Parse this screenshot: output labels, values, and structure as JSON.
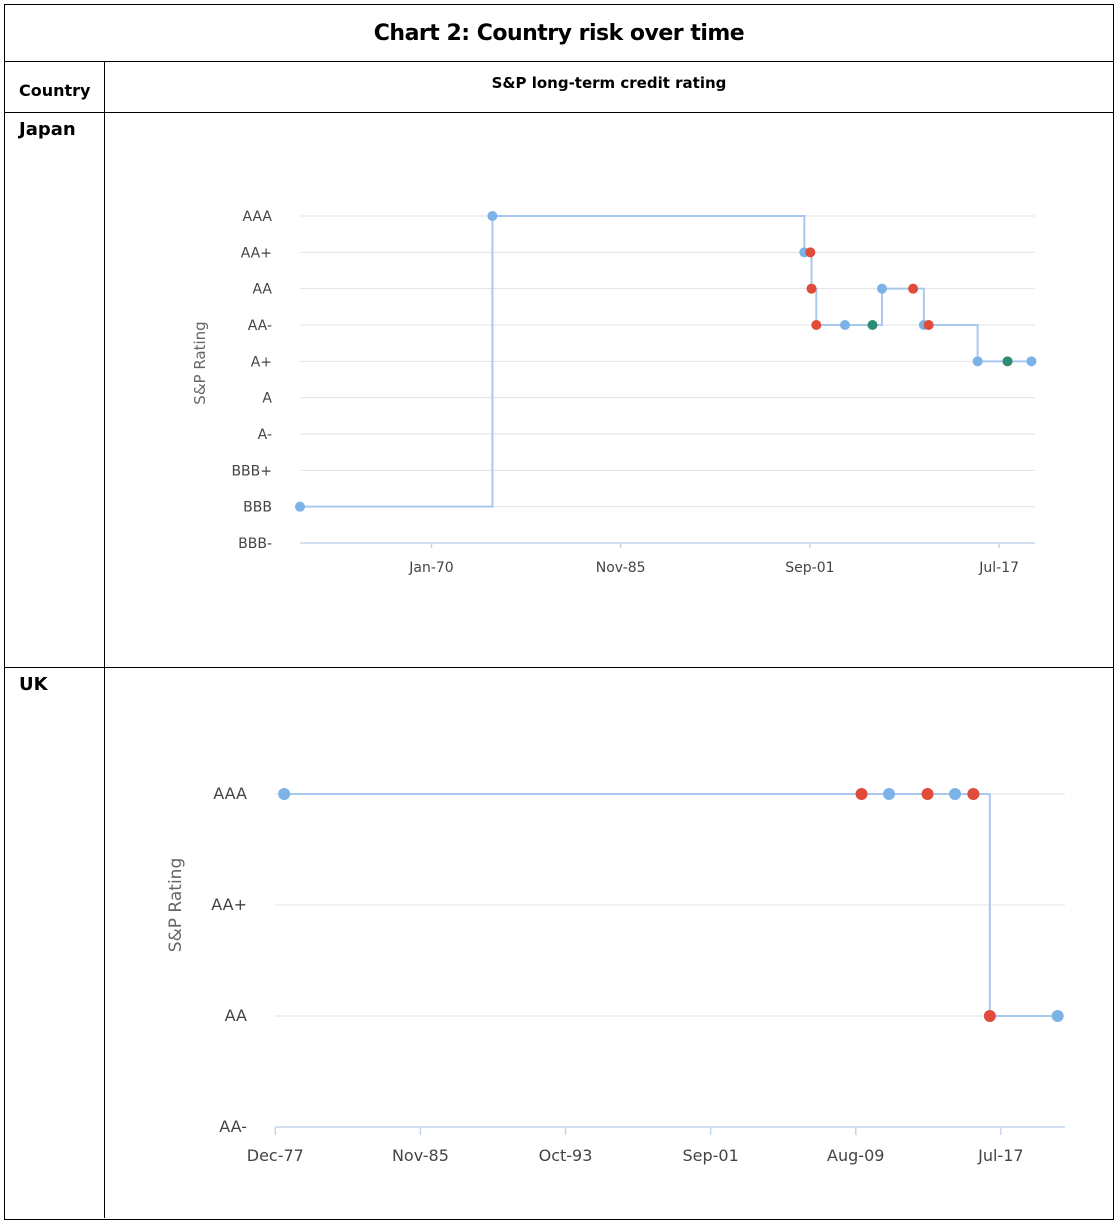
{
  "title": "Chart 2: Country risk over time",
  "header": {
    "country_col": "Country",
    "rating_col": "S&P long-term credit rating"
  },
  "colors": {
    "line": "#a8c8ee",
    "upgrade_or_affirm": "#7db2e8",
    "downgrade": "#e04b3a",
    "outlook": "#2e8b74",
    "grid": "#e3e3e3",
    "axis": "#c6d6ea",
    "label": "#444444"
  },
  "rows": [
    {
      "country": "Japan"
    },
    {
      "country": "UK"
    }
  ],
  "chart_data": [
    {
      "type": "line",
      "country": "Japan",
      "step": true,
      "ylabel": "S&P Rating",
      "y_categories": [
        "BBB-",
        "BBB",
        "BBB+",
        "A-",
        "A",
        "A+",
        "AA-",
        "AA",
        "AA+",
        "AAA"
      ],
      "x_ticks": [
        "Jan-70",
        "Nov-85",
        "Sep-01",
        "Jul-17"
      ],
      "xlim": [
        1959.0,
        2020.5
      ],
      "points": [
        {
          "year": 1959.0,
          "rating": "BBB",
          "color": "blue"
        },
        {
          "year": 1975.1,
          "rating": "AAA",
          "color": "blue"
        },
        {
          "year": 2001.2,
          "rating": "AA+",
          "color": "blue"
        },
        {
          "year": 2001.7,
          "rating": "AA+",
          "color": "red"
        },
        {
          "year": 2001.8,
          "rating": "AA",
          "color": "red"
        },
        {
          "year": 2002.2,
          "rating": "AA-",
          "color": "red"
        },
        {
          "year": 2004.6,
          "rating": "AA-",
          "color": "blue"
        },
        {
          "year": 2006.9,
          "rating": "AA-",
          "color": "green"
        },
        {
          "year": 2007.7,
          "rating": "AA",
          "color": "blue"
        },
        {
          "year": 2010.3,
          "rating": "AA",
          "color": "red"
        },
        {
          "year": 2011.2,
          "rating": "AA-",
          "color": "blue"
        },
        {
          "year": 2011.6,
          "rating": "AA-",
          "color": "red"
        },
        {
          "year": 2015.7,
          "rating": "A+",
          "color": "blue"
        },
        {
          "year": 2018.2,
          "rating": "A+",
          "color": "green"
        },
        {
          "year": 2020.2,
          "rating": "A+",
          "color": "blue"
        }
      ]
    },
    {
      "type": "line",
      "country": "UK",
      "step": true,
      "ylabel": "S&P Rating",
      "y_categories": [
        "AA-",
        "AA",
        "AA+",
        "AAA"
      ],
      "x_ticks": [
        "Dec-77",
        "Nov-85",
        "Oct-93",
        "Sep-01",
        "Aug-09",
        "Jul-17"
      ],
      "xlim": [
        1977.9,
        2021.0
      ],
      "points": [
        {
          "year": 1978.4,
          "rating": "AAA",
          "color": "blue"
        },
        {
          "year": 2009.9,
          "rating": "AAA",
          "color": "red"
        },
        {
          "year": 2011.4,
          "rating": "AAA",
          "color": "blue"
        },
        {
          "year": 2013.5,
          "rating": "AAA",
          "color": "red"
        },
        {
          "year": 2015.0,
          "rating": "AAA",
          "color": "blue"
        },
        {
          "year": 2016.0,
          "rating": "AAA",
          "color": "red"
        },
        {
          "year": 2016.9,
          "rating": "AA",
          "color": "red"
        },
        {
          "year": 2020.6,
          "rating": "AA",
          "color": "blue"
        }
      ]
    }
  ]
}
